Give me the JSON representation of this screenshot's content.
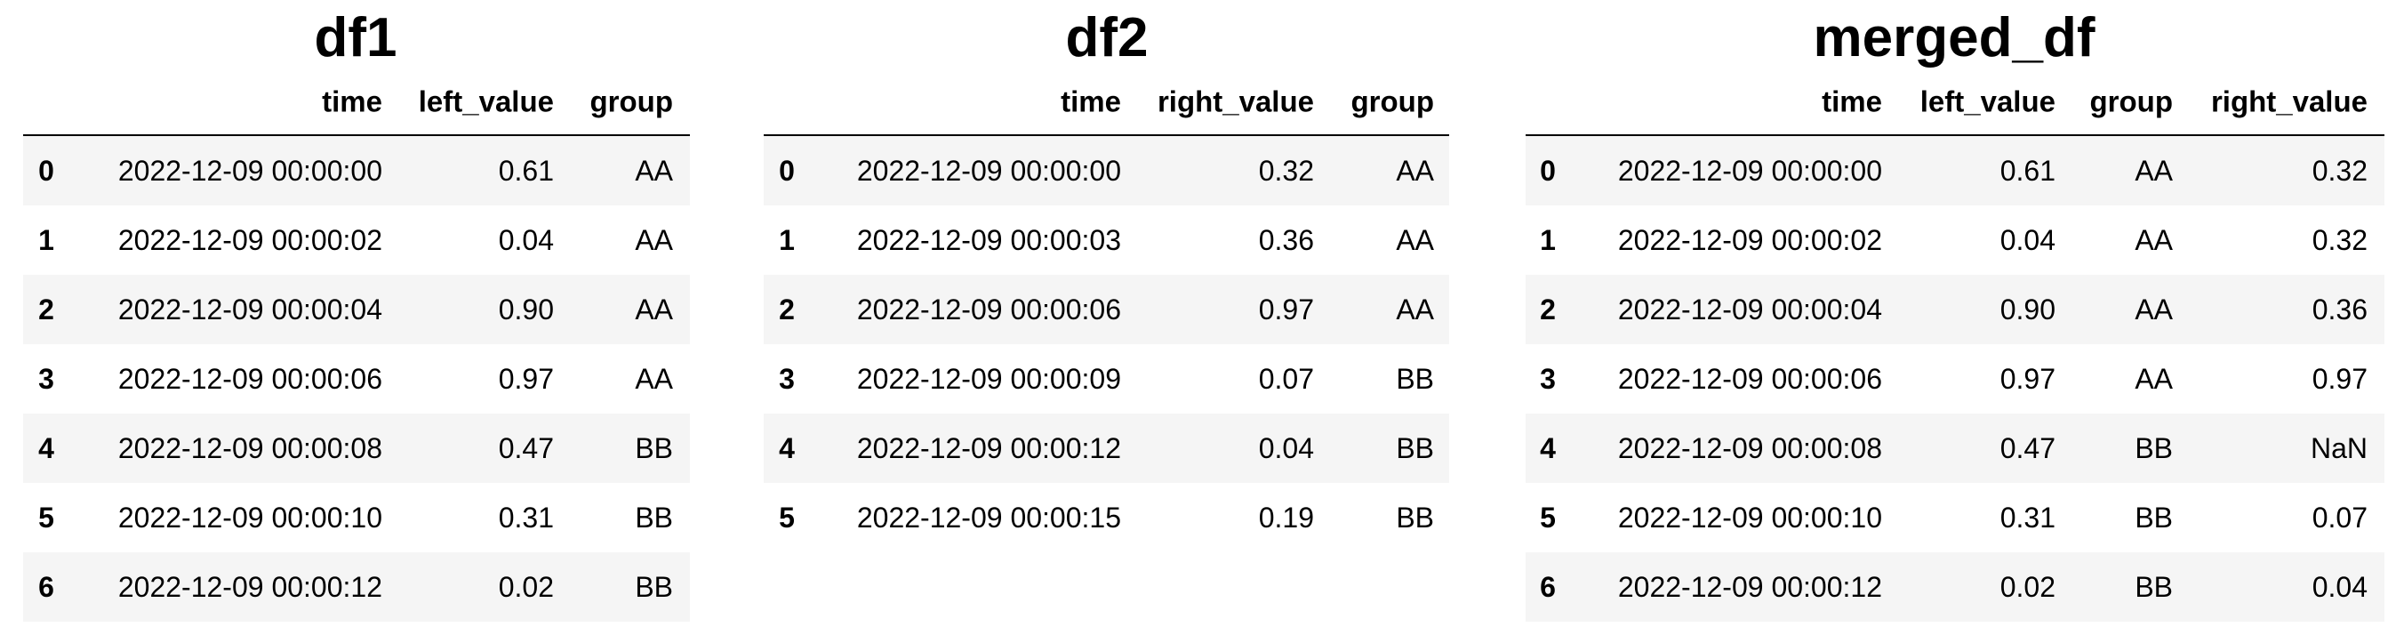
{
  "tables": [
    {
      "title": "df1",
      "columns": [
        "time",
        "left_value",
        "group"
      ],
      "index": [
        "0",
        "1",
        "2",
        "3",
        "4",
        "5",
        "6"
      ],
      "rows": [
        [
          "2022-12-09 00:00:00",
          "0.61",
          "AA"
        ],
        [
          "2022-12-09 00:00:02",
          "0.04",
          "AA"
        ],
        [
          "2022-12-09 00:00:04",
          "0.90",
          "AA"
        ],
        [
          "2022-12-09 00:00:06",
          "0.97",
          "AA"
        ],
        [
          "2022-12-09 00:00:08",
          "0.47",
          "BB"
        ],
        [
          "2022-12-09 00:00:10",
          "0.31",
          "BB"
        ],
        [
          "2022-12-09 00:00:12",
          "0.02",
          "BB"
        ]
      ]
    },
    {
      "title": "df2",
      "columns": [
        "time",
        "right_value",
        "group"
      ],
      "index": [
        "0",
        "1",
        "2",
        "3",
        "4",
        "5"
      ],
      "rows": [
        [
          "2022-12-09 00:00:00",
          "0.32",
          "AA"
        ],
        [
          "2022-12-09 00:00:03",
          "0.36",
          "AA"
        ],
        [
          "2022-12-09 00:00:06",
          "0.97",
          "AA"
        ],
        [
          "2022-12-09 00:00:09",
          "0.07",
          "BB"
        ],
        [
          "2022-12-09 00:00:12",
          "0.04",
          "BB"
        ],
        [
          "2022-12-09 00:00:15",
          "0.19",
          "BB"
        ]
      ]
    },
    {
      "title": "merged_df",
      "columns": [
        "time",
        "left_value",
        "group",
        "right_value"
      ],
      "index": [
        "0",
        "1",
        "2",
        "3",
        "4",
        "5",
        "6"
      ],
      "rows": [
        [
          "2022-12-09 00:00:00",
          "0.61",
          "AA",
          "0.32"
        ],
        [
          "2022-12-09 00:00:02",
          "0.04",
          "AA",
          "0.32"
        ],
        [
          "2022-12-09 00:00:04",
          "0.90",
          "AA",
          "0.36"
        ],
        [
          "2022-12-09 00:00:06",
          "0.97",
          "AA",
          "0.97"
        ],
        [
          "2022-12-09 00:00:08",
          "0.47",
          "BB",
          "NaN"
        ],
        [
          "2022-12-09 00:00:10",
          "0.31",
          "BB",
          "0.07"
        ],
        [
          "2022-12-09 00:00:12",
          "0.02",
          "BB",
          "0.04"
        ]
      ]
    }
  ]
}
